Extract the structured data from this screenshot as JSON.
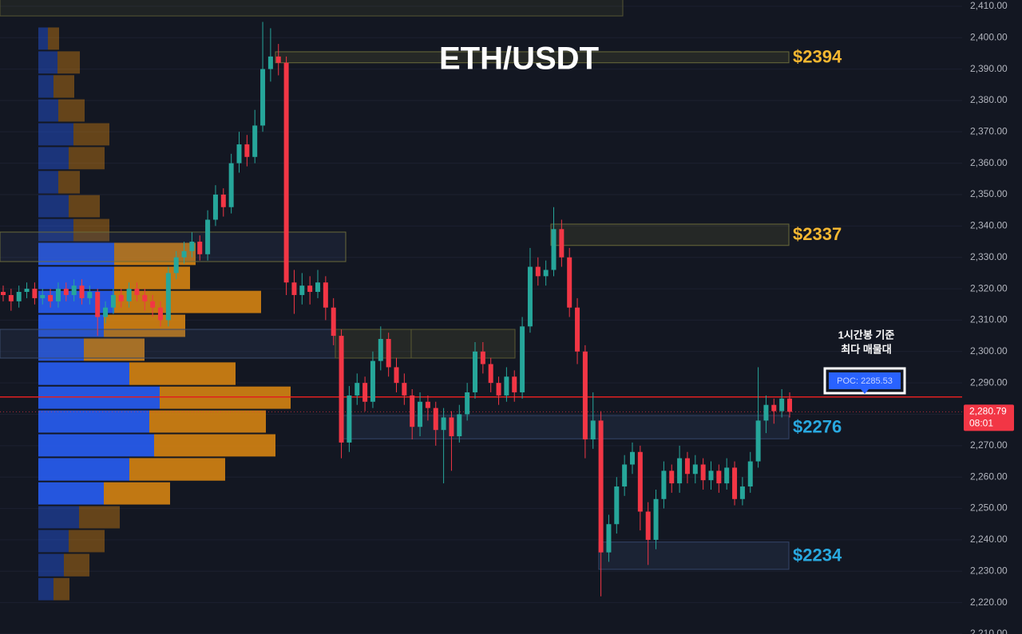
{
  "chart_data": {
    "type": "candlestick",
    "title": "ETH/USDT",
    "ylim": [
      2210,
      2412
    ],
    "yticks": [
      {
        "value": 2210,
        "label": "2,210.00"
      },
      {
        "value": 2220,
        "label": "2,220.00"
      },
      {
        "value": 2230,
        "label": "2,230.00"
      },
      {
        "value": 2240,
        "label": "2,240.00"
      },
      {
        "value": 2250,
        "label": "2,250.00"
      },
      {
        "value": 2260,
        "label": "2,260.00"
      },
      {
        "value": 2270,
        "label": "2,270.00"
      },
      {
        "value": 2280,
        "label": "2,280.00"
      },
      {
        "value": 2290,
        "label": "2,290.00"
      },
      {
        "value": 2300,
        "label": "2,300.00"
      },
      {
        "value": 2310,
        "label": "2,310.00"
      },
      {
        "value": 2320,
        "label": "2,320.00"
      },
      {
        "value": 2330,
        "label": "2,330.00"
      },
      {
        "value": 2340,
        "label": "2,340.00"
      },
      {
        "value": 2350,
        "label": "2,350.00"
      },
      {
        "value": 2360,
        "label": "2,360.00"
      },
      {
        "value": 2370,
        "label": "2,370.00"
      },
      {
        "value": 2380,
        "label": "2,380.00"
      },
      {
        "value": 2390,
        "label": "2,390.00"
      },
      {
        "value": 2400,
        "label": "2,400.00"
      },
      {
        "value": 2410,
        "label": "2,410.00"
      }
    ],
    "grid": true,
    "up_color": "#26a69a",
    "down_color": "#f23645",
    "candles": [
      [
        2319,
        2321,
        2316,
        2318
      ],
      [
        2318,
        2320,
        2313,
        2316
      ],
      [
        2316,
        2321,
        2314,
        2319
      ],
      [
        2319,
        2322,
        2317,
        2320
      ],
      [
        2320,
        2322,
        2315,
        2317
      ],
      [
        2317,
        2320,
        2315,
        2318
      ],
      [
        2318,
        2320,
        2314,
        2316
      ],
      [
        2316,
        2322,
        2314,
        2320
      ],
      [
        2320,
        2322,
        2316,
        2318
      ],
      [
        2318,
        2323,
        2316,
        2321
      ],
      [
        2321,
        2323,
        2315,
        2317
      ],
      [
        2317,
        2321,
        2315,
        2319
      ],
      [
        2319,
        2320,
        2305,
        2311
      ],
      [
        2311,
        2316,
        2309,
        2314
      ],
      [
        2314,
        2320,
        2312,
        2318
      ],
      [
        2318,
        2320,
        2314,
        2316
      ],
      [
        2316,
        2322,
        2314,
        2320
      ],
      [
        2320,
        2322,
        2316,
        2318
      ],
      [
        2318,
        2320,
        2313,
        2316
      ],
      [
        2316,
        2318,
        2311,
        2314
      ],
      [
        2314,
        2316,
        2308,
        2310
      ],
      [
        2310,
        2327,
        2308,
        2325
      ],
      [
        2325,
        2332,
        2323,
        2330
      ],
      [
        2330,
        2335,
        2328,
        2332
      ],
      [
        2332,
        2338,
        2330,
        2335
      ],
      [
        2335,
        2337,
        2329,
        2331
      ],
      [
        2331,
        2345,
        2329,
        2342
      ],
      [
        2342,
        2353,
        2340,
        2350
      ],
      [
        2350,
        2352,
        2343,
        2346
      ],
      [
        2346,
        2363,
        2344,
        2360
      ],
      [
        2360,
        2370,
        2357,
        2366
      ],
      [
        2366,
        2369,
        2359,
        2362
      ],
      [
        2362,
        2377,
        2360,
        2372
      ],
      [
        2372,
        2405,
        2370,
        2390
      ],
      [
        2390,
        2403,
        2386,
        2394
      ],
      [
        2394,
        2398,
        2388,
        2392
      ],
      [
        2392,
        2394,
        2318,
        2322
      ],
      [
        2322,
        2326,
        2312,
        2318
      ],
      [
        2318,
        2325,
        2315,
        2321
      ],
      [
        2321,
        2324,
        2315,
        2319
      ],
      [
        2319,
        2326,
        2317,
        2322
      ],
      [
        2322,
        2324,
        2310,
        2314
      ],
      [
        2314,
        2317,
        2302,
        2305
      ],
      [
        2305,
        2307,
        2266,
        2271
      ],
      [
        2271,
        2289,
        2268,
        2286
      ],
      [
        2286,
        2293,
        2283,
        2290
      ],
      [
        2290,
        2292,
        2281,
        2284
      ],
      [
        2284,
        2300,
        2282,
        2297
      ],
      [
        2297,
        2308,
        2294,
        2304
      ],
      [
        2304,
        2306,
        2292,
        2295
      ],
      [
        2295,
        2298,
        2287,
        2290
      ],
      [
        2290,
        2293,
        2283,
        2286
      ],
      [
        2286,
        2288,
        2272,
        2276
      ],
      [
        2276,
        2287,
        2273,
        2284
      ],
      [
        2284,
        2286,
        2278,
        2282
      ],
      [
        2282,
        2284,
        2270,
        2275
      ],
      [
        2275,
        2282,
        2258,
        2279
      ],
      [
        2279,
        2281,
        2262,
        2273
      ],
      [
        2273,
        2283,
        2271,
        2280
      ],
      [
        2280,
        2290,
        2278,
        2287
      ],
      [
        2287,
        2303,
        2285,
        2300
      ],
      [
        2300,
        2303,
        2293,
        2296
      ],
      [
        2296,
        2298,
        2287,
        2290
      ],
      [
        2290,
        2292,
        2283,
        2286
      ],
      [
        2286,
        2295,
        2284,
        2292
      ],
      [
        2292,
        2294,
        2284,
        2287
      ],
      [
        2287,
        2311,
        2285,
        2308
      ],
      [
        2308,
        2333,
        2306,
        2327
      ],
      [
        2327,
        2330,
        2321,
        2324
      ],
      [
        2324,
        2329,
        2321,
        2326
      ],
      [
        2326,
        2346,
        2324,
        2339
      ],
      [
        2339,
        2342,
        2327,
        2330
      ],
      [
        2330,
        2333,
        2311,
        2314
      ],
      [
        2314,
        2317,
        2296,
        2300
      ],
      [
        2300,
        2302,
        2266,
        2272
      ],
      [
        2272,
        2287,
        2269,
        2278
      ],
      [
        2278,
        2281,
        2222,
        2236
      ],
      [
        2236,
        2248,
        2233,
        2245
      ],
      [
        2245,
        2260,
        2242,
        2257
      ],
      [
        2257,
        2267,
        2254,
        2264
      ],
      [
        2264,
        2271,
        2261,
        2268
      ],
      [
        2268,
        2270,
        2243,
        2249
      ],
      [
        2249,
        2252,
        2232,
        2240
      ],
      [
        2240,
        2256,
        2237,
        2253
      ],
      [
        2253,
        2265,
        2250,
        2262
      ],
      [
        2262,
        2264,
        2255,
        2258
      ],
      [
        2258,
        2270,
        2255,
        2266
      ],
      [
        2266,
        2268,
        2258,
        2261
      ],
      [
        2261,
        2267,
        2258,
        2264
      ],
      [
        2264,
        2266,
        2256,
        2259
      ],
      [
        2259,
        2265,
        2256,
        2262
      ],
      [
        2262,
        2264,
        2255,
        2258
      ],
      [
        2258,
        2266,
        2256,
        2263
      ],
      [
        2263,
        2265,
        2251,
        2253
      ],
      [
        2253,
        2260,
        2251,
        2257
      ],
      [
        2257,
        2268,
        2255,
        2265
      ],
      [
        2265,
        2295,
        2263,
        2278
      ],
      [
        2278,
        2286,
        2274,
        2283
      ],
      [
        2283,
        2285,
        2277,
        2281
      ],
      [
        2281,
        2288,
        2279,
        2285
      ],
      [
        2285,
        2287,
        2279,
        2280.79
      ]
    ],
    "volume_profile": {
      "bins": [
        2403.5,
        2395.9,
        2388.3,
        2380.6,
        2373.0,
        2365.4,
        2357.8,
        2350.1,
        2342.5,
        2334.9,
        2327.3,
        2319.6,
        2312.0,
        2304.4,
        2296.8,
        2289.1,
        2281.5,
        2273.9,
        2266.3,
        2258.6,
        2251.0,
        2243.4,
        2235.8,
        2228.1,
        2220.5
      ],
      "buy": [
        12,
        24,
        19,
        25,
        44,
        38,
        25,
        38,
        44,
        95,
        95,
        95,
        82,
        57,
        114,
        152,
        139,
        145,
        114,
        82,
        51,
        38,
        32,
        19
      ],
      "sell": [
        14,
        28,
        26,
        33,
        45,
        45,
        27,
        39,
        45,
        102,
        95,
        184,
        102,
        76,
        133,
        164,
        146,
        152,
        120,
        83,
        51,
        45,
        32,
        20
      ],
      "buy_color": "#2962ff",
      "sell_color": "#e08a10"
    },
    "zones": [
      {
        "label": "$2394",
        "top": 2395.5,
        "bottom": 2392,
        "color": "#f5b731"
      },
      {
        "label": "$2337",
        "top": 2340.6,
        "bottom": 2333.8,
        "color": "#f5b731"
      },
      {
        "label": "$2276",
        "top": 2279.6,
        "bottom": 2272.2,
        "color": "#29a9e0"
      },
      {
        "label": "$2234",
        "top": 2239.3,
        "bottom": 2230.6,
        "color": "#29a9e0"
      }
    ],
    "poc": {
      "value": 2285.53,
      "label": "POC: 2285.53"
    },
    "annotation": [
      "1시간봉 기준",
      "최다 매물대"
    ],
    "last_price": {
      "value": 2280.79,
      "label": "2,280.79",
      "countdown": "08:01"
    }
  }
}
